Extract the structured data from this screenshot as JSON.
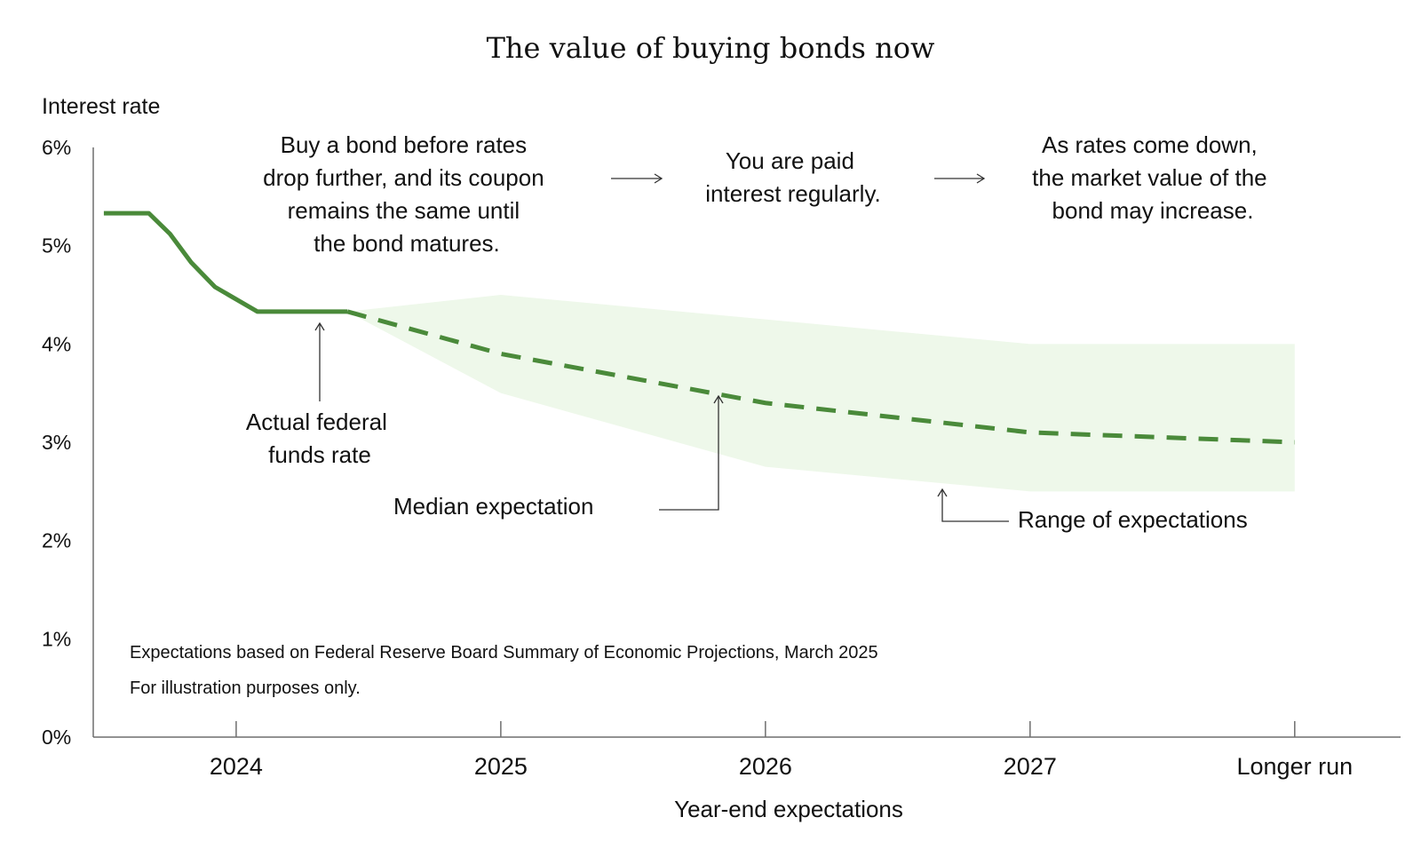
{
  "chart_data": {
    "type": "line",
    "title": "The value of buying bonds now",
    "ylabel": "Interest rate",
    "xlabel": "Year-end expectations",
    "ylim": [
      0,
      6
    ],
    "y_ticks": [
      "0%",
      "1%",
      "2%",
      "3%",
      "4%",
      "5%",
      "6%"
    ],
    "x_domain": [
      -0.54,
      4.4
    ],
    "categories": [
      "2024",
      "2025",
      "2026",
      "2027",
      "Longer run"
    ],
    "series": [
      {
        "name": "Actual federal funds rate",
        "style": "solid",
        "x": [
          -0.5,
          -0.33,
          -0.25,
          -0.17,
          -0.08,
          0.08,
          0.42
        ],
        "values": [
          5.33,
          5.33,
          5.12,
          4.83,
          4.58,
          4.33,
          4.33
        ]
      },
      {
        "name": "Median expectation",
        "style": "dashed",
        "x": [
          0.42,
          1,
          2,
          3,
          4
        ],
        "values": [
          4.33,
          3.9,
          3.4,
          3.1,
          3.0
        ]
      }
    ],
    "range": {
      "name": "Range of expectations",
      "x": [
        0.42,
        1,
        2,
        3,
        4
      ],
      "upper": [
        4.33,
        4.5,
        4.25,
        4.0,
        4.0
      ],
      "lower": [
        4.33,
        3.5,
        2.75,
        2.5,
        2.5
      ]
    },
    "annotations": {
      "bond_buy": [
        "Buy a bond before rates",
        "drop further, and its coupon",
        "remains the same until",
        "the bond matures."
      ],
      "paid": [
        "You are paid",
        "interest regularly."
      ],
      "market_value": [
        "As rates come down,",
        "the market value of the",
        "bond may increase."
      ],
      "actual_rate": [
        "Actual federal",
        "funds rate"
      ],
      "median": "Median expectation",
      "range": "Range of expectations"
    },
    "notes": [
      "Expectations based on Federal Reserve Board Summary of Economic Projections, March 2025",
      "For illustration purposes only."
    ],
    "colors": {
      "line": "#4a8a3a",
      "band": "#eef8ea",
      "axis": "#6e6e6e",
      "text": "#111111"
    }
  }
}
